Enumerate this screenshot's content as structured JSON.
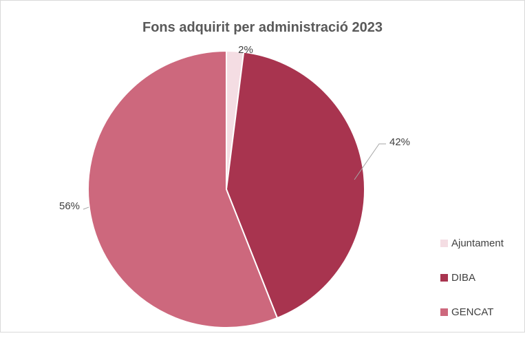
{
  "chart_data": {
    "type": "pie",
    "title": "Fons adquirit per administració 2023",
    "slices": [
      {
        "name": "Ajuntament",
        "value": 2,
        "label": "2%",
        "color": "#f4dde3"
      },
      {
        "name": "DIBA",
        "value": 42,
        "label": "42%",
        "color": "#a8344f"
      },
      {
        "name": "GENCAT",
        "value": 56,
        "label": "56%",
        "color": "#cd687d"
      }
    ],
    "legend_position": "right",
    "data_labels": "outside with leader lines"
  }
}
